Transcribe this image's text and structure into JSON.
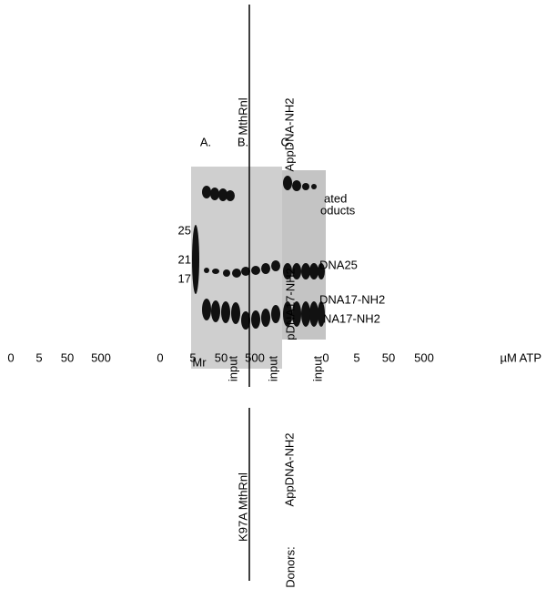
{
  "panels": [
    "A.",
    "B.",
    "C."
  ],
  "top_labels": {
    "enzyme": "MthRnl",
    "donor": "AppDNA-NH2"
  },
  "markers": {
    "name": "Mr",
    "sizes": [
      "25",
      "21",
      "17"
    ]
  },
  "band_labels": {
    "products_1": "ated",
    "products_2": "oducts",
    "acceptor": "DNA25",
    "adenylated": "DNA17-NH2",
    "donor": "NA17-NH2",
    "phospho_donor": "pDNA17-NH2"
  },
  "atp": {
    "group_1": [
      "0",
      "5",
      "50",
      "500"
    ],
    "group_2": [
      "0",
      "5",
      "50",
      "500"
    ],
    "group_3": [
      "0",
      "5",
      "50",
      "500"
    ],
    "unit": "µM ATP"
  },
  "inputs": [
    "input",
    "input",
    "input"
  ],
  "bottom_labels": {
    "enzyme": "K97A MthRnl",
    "donor": "AppDNA-NH2",
    "donors_title": "Donors:"
  }
}
